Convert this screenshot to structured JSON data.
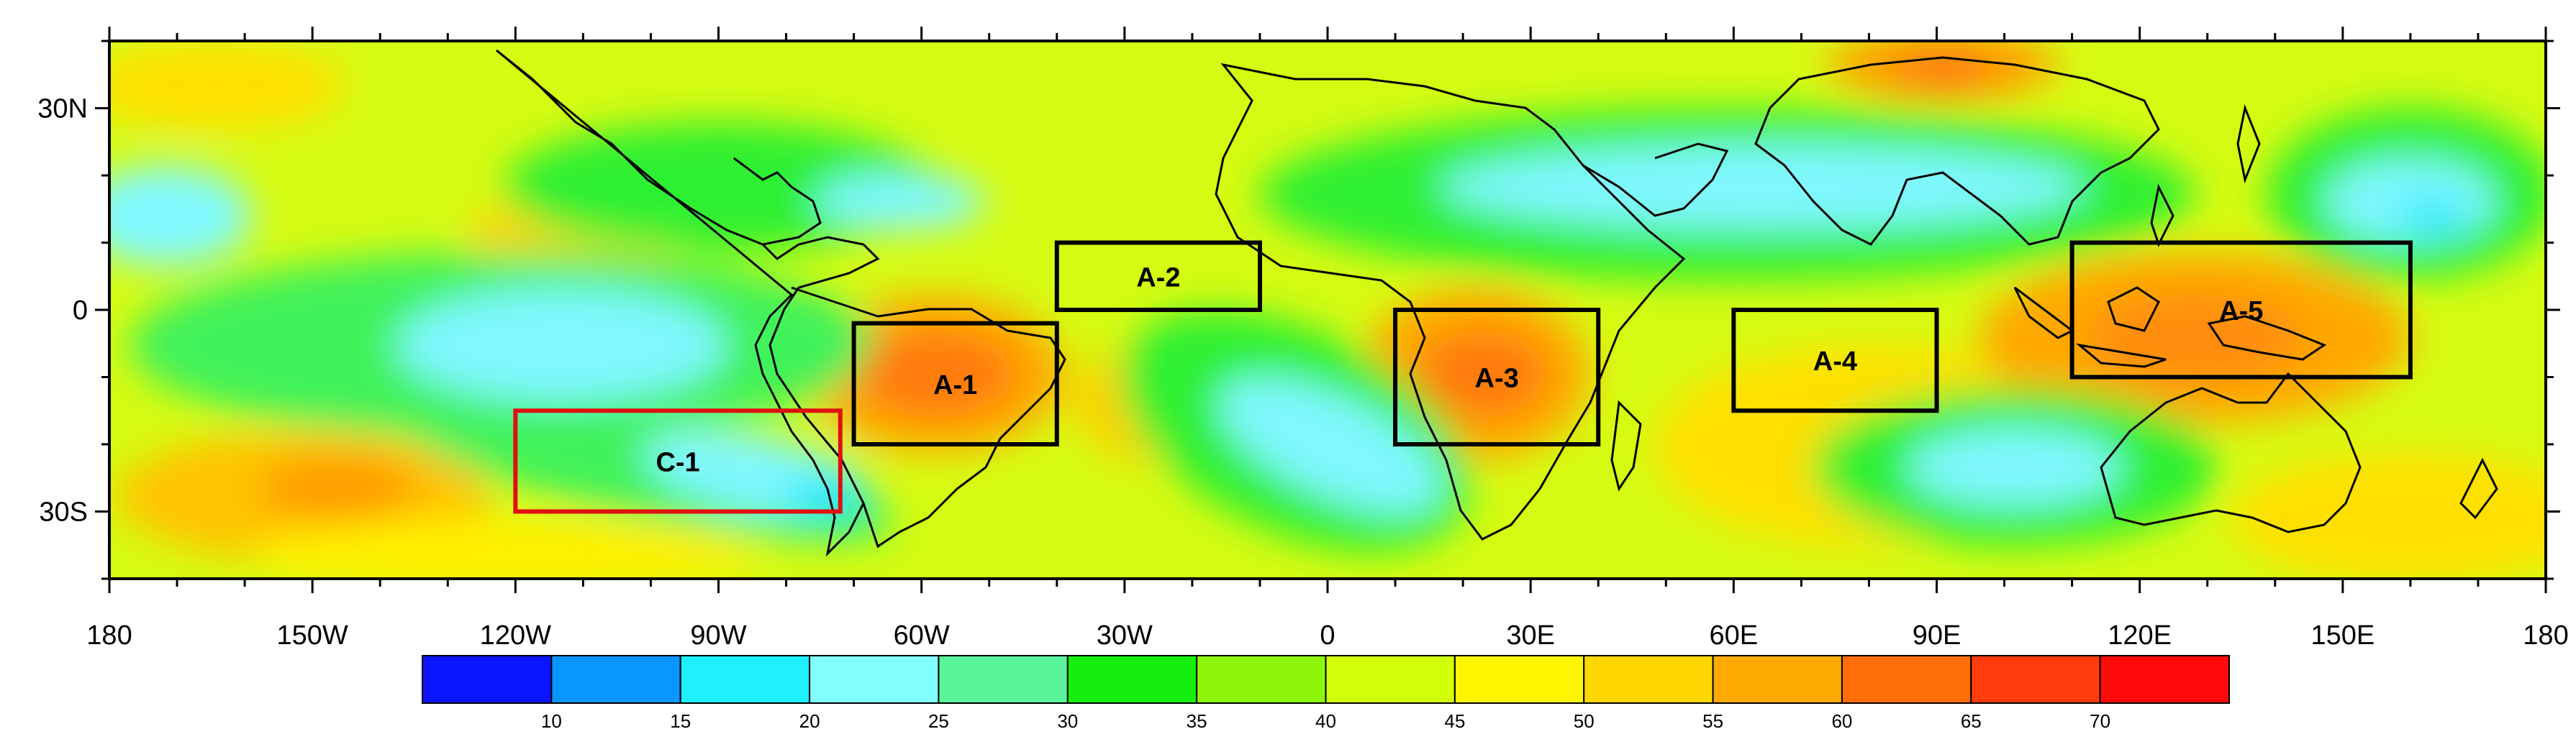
{
  "map": {
    "lon_labels": [
      "180",
      "150W",
      "120W",
      "90W",
      "60W",
      "30W",
      "0",
      "30E",
      "60E",
      "90E",
      "120E",
      "150E",
      "180"
    ],
    "lon_values": [
      -180,
      -150,
      -120,
      -90,
      -60,
      -30,
      0,
      30,
      60,
      90,
      120,
      150,
      180
    ],
    "lat_labels": [
      "30N",
      "0",
      "30S"
    ],
    "lat_values": [
      30,
      0,
      -30
    ],
    "extent": {
      "lon": [
        -180,
        180
      ],
      "lat": [
        -40,
        40
      ]
    },
    "boxes": [
      {
        "label": "A-1",
        "lon": [
          -70,
          -40
        ],
        "lat": [
          -20,
          -2
        ],
        "color": "#000000"
      },
      {
        "label": "A-2",
        "lon": [
          -40,
          -10
        ],
        "lat": [
          0,
          10
        ],
        "color": "#000000"
      },
      {
        "label": "A-3",
        "lon": [
          10,
          40
        ],
        "lat": [
          -20,
          0
        ],
        "color": "#000000"
      },
      {
        "label": "A-4",
        "lon": [
          60,
          90
        ],
        "lat": [
          -15,
          0
        ],
        "color": "#000000"
      },
      {
        "label": "A-5",
        "lon": [
          110,
          160
        ],
        "lat": [
          -10,
          10
        ],
        "color": "#000000"
      },
      {
        "label": "C-1",
        "lon": [
          -120,
          -72
        ],
        "lat": [
          -30,
          -15
        ],
        "color": "#e01010"
      }
    ]
  },
  "colorbar": {
    "levels": [
      "10",
      "15",
      "20",
      "25",
      "30",
      "35",
      "40",
      "45",
      "50",
      "55",
      "60",
      "65",
      "70"
    ],
    "colors": [
      "#0a14ff",
      "#0a96ff",
      "#1ef0ff",
      "#82ffff",
      "#5af59b",
      "#14ef0e",
      "#8cf50a",
      "#d2ff0a",
      "#fff500",
      "#ffd700",
      "#ffaa00",
      "#ff6e0a",
      "#ff3c0a",
      "#ff0a0a"
    ]
  }
}
